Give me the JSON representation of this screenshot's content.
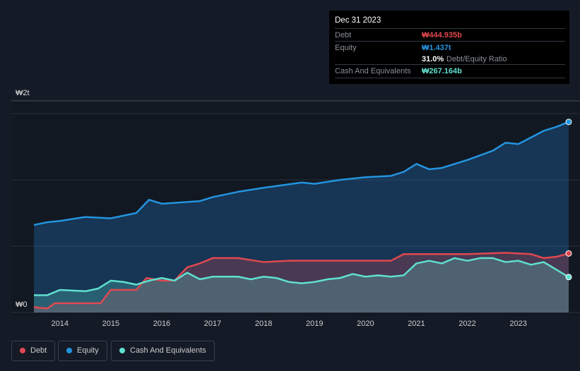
{
  "tooltip": {
    "date": "Dec 31 2023",
    "debt_label": "Debt",
    "debt_value": "₩444.935b",
    "equity_label": "Equity",
    "equity_value": "₩1.437t",
    "ratio_value": "31.0%",
    "ratio_label": "Debt/Equity Ratio",
    "cash_label": "Cash And Equivalents",
    "cash_value": "₩267.164b"
  },
  "legend": [
    {
      "label": "Debt",
      "color": "#e0484f"
    },
    {
      "label": "Equity",
      "color": "#2394df"
    },
    {
      "label": "Cash And Equivalents",
      "color": "#5fe0cf"
    }
  ],
  "chart_data": {
    "type": "area",
    "ylabel_top": "₩2t",
    "ylabel_zero": "₩0",
    "unit": "trillion KRW",
    "ylim": [
      0,
      1.6
    ],
    "xlim": [
      2013.49,
      2023.99
    ],
    "x_ticks": [
      "2014",
      "2015",
      "2016",
      "2017",
      "2018",
      "2019",
      "2020",
      "2021",
      "2022",
      "2023"
    ],
    "series": [
      {
        "name": "Equity",
        "color": "#2394df",
        "points": [
          [
            2013.49,
            0.66
          ],
          [
            2013.75,
            0.68
          ],
          [
            2014,
            0.69
          ],
          [
            2014.5,
            0.72
          ],
          [
            2015,
            0.71
          ],
          [
            2015.5,
            0.75
          ],
          [
            2015.75,
            0.85
          ],
          [
            2016,
            0.82
          ],
          [
            2016.75,
            0.84
          ],
          [
            2017,
            0.87
          ],
          [
            2017.5,
            0.91
          ],
          [
            2018,
            0.94
          ],
          [
            2018.75,
            0.98
          ],
          [
            2019,
            0.97
          ],
          [
            2019.5,
            1.0
          ],
          [
            2020,
            1.02
          ],
          [
            2020.5,
            1.03
          ],
          [
            2020.75,
            1.06
          ],
          [
            2021,
            1.12
          ],
          [
            2021.25,
            1.08
          ],
          [
            2021.5,
            1.09
          ],
          [
            2022,
            1.15
          ],
          [
            2022.5,
            1.22
          ],
          [
            2022.75,
            1.28
          ],
          [
            2023,
            1.27
          ],
          [
            2023.25,
            1.32
          ],
          [
            2023.5,
            1.37
          ],
          [
            2023.75,
            1.4
          ],
          [
            2023.99,
            1.437
          ]
        ]
      },
      {
        "name": "Debt",
        "color": "#e0484f",
        "points": [
          [
            2013.49,
            0.04
          ],
          [
            2013.75,
            0.03
          ],
          [
            2013.9,
            0.07
          ],
          [
            2014.5,
            0.07
          ],
          [
            2014.8,
            0.07
          ],
          [
            2015,
            0.17
          ],
          [
            2015.5,
            0.17
          ],
          [
            2015.7,
            0.26
          ],
          [
            2016,
            0.24
          ],
          [
            2016.25,
            0.24
          ],
          [
            2016.5,
            0.34
          ],
          [
            2016.75,
            0.37
          ],
          [
            2017,
            0.41
          ],
          [
            2017.5,
            0.41
          ],
          [
            2018,
            0.38
          ],
          [
            2018.5,
            0.39
          ],
          [
            2019,
            0.39
          ],
          [
            2020,
            0.39
          ],
          [
            2020.5,
            0.39
          ],
          [
            2020.75,
            0.44
          ],
          [
            2021.5,
            0.44
          ],
          [
            2022,
            0.44
          ],
          [
            2022.75,
            0.45
          ],
          [
            2023.25,
            0.44
          ],
          [
            2023.5,
            0.41
          ],
          [
            2023.75,
            0.42
          ],
          [
            2023.99,
            0.445
          ]
        ]
      },
      {
        "name": "Cash And Equivalents",
        "color": "#5fe0cf",
        "points": [
          [
            2013.49,
            0.13
          ],
          [
            2013.75,
            0.13
          ],
          [
            2014,
            0.17
          ],
          [
            2014.5,
            0.16
          ],
          [
            2014.75,
            0.18
          ],
          [
            2015,
            0.24
          ],
          [
            2015.25,
            0.23
          ],
          [
            2015.5,
            0.21
          ],
          [
            2015.75,
            0.24
          ],
          [
            2016,
            0.26
          ],
          [
            2016.25,
            0.24
          ],
          [
            2016.5,
            0.3
          ],
          [
            2016.75,
            0.25
          ],
          [
            2017,
            0.27
          ],
          [
            2017.5,
            0.27
          ],
          [
            2017.75,
            0.25
          ],
          [
            2018,
            0.27
          ],
          [
            2018.25,
            0.26
          ],
          [
            2018.5,
            0.23
          ],
          [
            2018.75,
            0.22
          ],
          [
            2019,
            0.23
          ],
          [
            2019.25,
            0.25
          ],
          [
            2019.5,
            0.26
          ],
          [
            2019.75,
            0.29
          ],
          [
            2020,
            0.27
          ],
          [
            2020.25,
            0.28
          ],
          [
            2020.5,
            0.27
          ],
          [
            2020.75,
            0.28
          ],
          [
            2021,
            0.37
          ],
          [
            2021.25,
            0.39
          ],
          [
            2021.5,
            0.37
          ],
          [
            2021.75,
            0.41
          ],
          [
            2022,
            0.39
          ],
          [
            2022.25,
            0.41
          ],
          [
            2022.5,
            0.41
          ],
          [
            2022.75,
            0.38
          ],
          [
            2023,
            0.39
          ],
          [
            2023.25,
            0.36
          ],
          [
            2023.5,
            0.38
          ],
          [
            2023.99,
            0.267
          ]
        ]
      }
    ]
  }
}
